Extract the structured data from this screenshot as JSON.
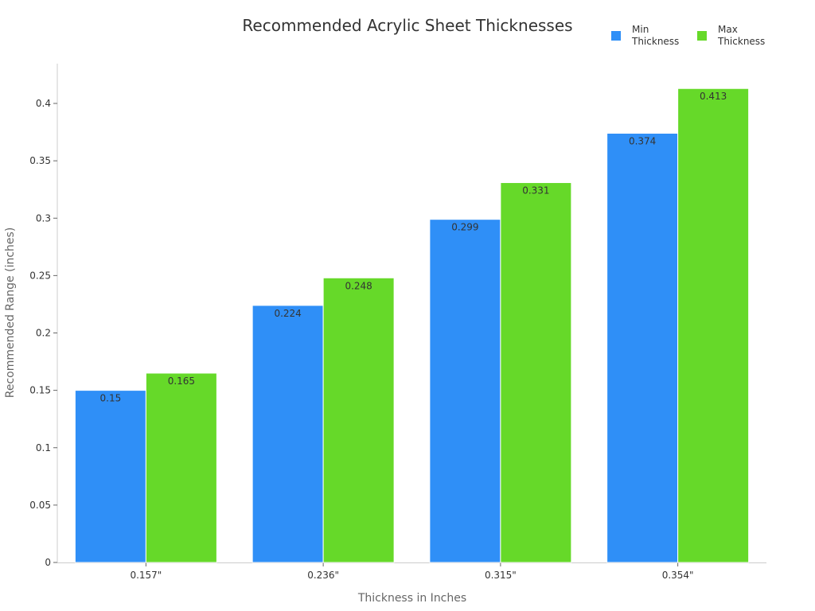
{
  "chart_data": {
    "type": "bar",
    "title": "Recommended Acrylic Sheet Thicknesses",
    "xlabel": "Thickness in Inches",
    "ylabel": "Recommended Range (inches)",
    "categories": [
      "0.157\"",
      "0.236\"",
      "0.315\"",
      "0.354\""
    ],
    "series": [
      {
        "name": "Min Thickness",
        "color": "#2f8ff7",
        "values": [
          0.15,
          0.224,
          0.299,
          0.374
        ]
      },
      {
        "name": "Max Thickness",
        "color": "#66d929",
        "values": [
          0.165,
          0.248,
          0.331,
          0.413
        ]
      }
    ],
    "yticks": [
      "0",
      "0.05",
      "0.1",
      "0.15",
      "0.2",
      "0.25",
      "0.3",
      "0.35",
      "0.4"
    ],
    "ylim": [
      0,
      0.435
    ],
    "grid": false,
    "legend_position": "top-right"
  },
  "legend": {
    "items": [
      {
        "line1": "Min",
        "line2": "Thickness",
        "color": "#2f8ff7"
      },
      {
        "line1": "Max",
        "line2": "Thickness",
        "color": "#66d929"
      }
    ]
  }
}
